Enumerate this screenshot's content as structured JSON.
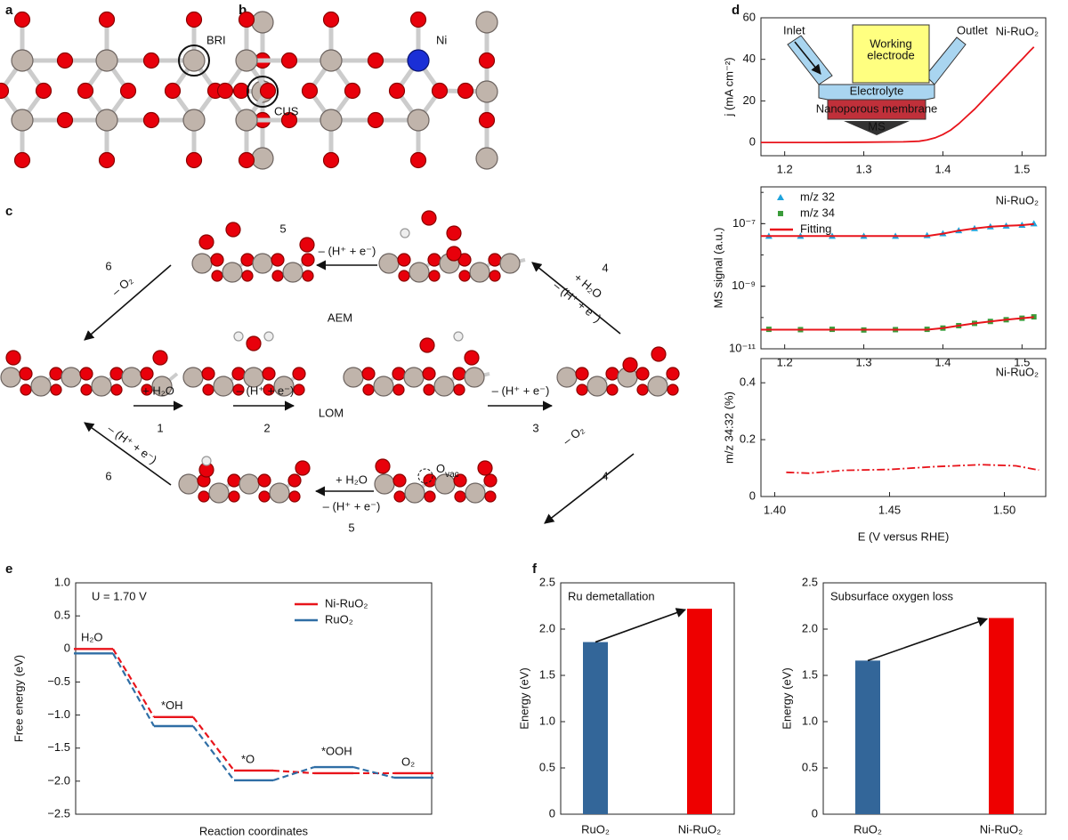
{
  "panels": {
    "a": {
      "label": "a",
      "bri": "BRI",
      "cus": "CUS"
    },
    "b": {
      "label": "b",
      "ni": "Ni"
    },
    "c": {
      "label": "c",
      "aem": "AEM",
      "lom": "LOM",
      "aem_steps": [
        {
          "number": "1",
          "text": [
            "+ H₂O"
          ]
        },
        {
          "number": "2",
          "text": [
            "– (H⁺ + e⁻)"
          ]
        },
        {
          "number": "3",
          "text": [
            "– (H⁺ + e⁻)"
          ]
        },
        {
          "number": "4",
          "text": [
            "+ H₂O",
            "– (H⁺ + e⁻)"
          ]
        },
        {
          "number": "5",
          "text": [
            "– (H⁺ + e⁻)"
          ]
        },
        {
          "number": "6",
          "text": [
            "– O₂"
          ]
        }
      ],
      "lom_steps": [
        {
          "number": "4",
          "text": [
            "– O₂"
          ]
        },
        {
          "number": "5",
          "text": [
            "+ H₂O",
            "– (H⁺ + e⁻)"
          ]
        },
        {
          "number": "6",
          "text": [
            "– (H⁺ + e⁻)"
          ]
        }
      ],
      "vacancy": {
        "main": "O",
        "sub": "vac"
      }
    },
    "d": {
      "label": "d"
    },
    "e": {
      "label": "e"
    },
    "f": {
      "label": "f"
    }
  },
  "chart_data": [
    {
      "type": "line",
      "annotation": "Ni-RuO₂",
      "ylabel": "j (mA cm⁻²)",
      "inset": {
        "inlet": "Inlet",
        "outlet": "Outlet",
        "working": [
          "Working",
          "electrode"
        ],
        "electrolyte": "Electrolyte",
        "membrane": "Nanoporous membrane",
        "ms": "MS"
      },
      "xlim": [
        1.17,
        1.53
      ],
      "xticks": [
        1.2,
        1.3,
        1.4,
        1.5
      ],
      "ylim": [
        -6.4,
        60
      ],
      "yticks": [
        0,
        20,
        40,
        60
      ],
      "series": [
        {
          "name": "Ni-RuO₂",
          "color": "#e8141b",
          "x": [
            1.17,
            1.2,
            1.25,
            1.3,
            1.35,
            1.37,
            1.38,
            1.39,
            1.4,
            1.41,
            1.42,
            1.43,
            1.44,
            1.45,
            1.46,
            1.47,
            1.48,
            1.49,
            1.5,
            1.51,
            1.515
          ],
          "values": [
            0,
            0,
            0,
            0.1,
            0.3,
            0.6,
            1.2,
            2.2,
            3.8,
            6,
            9,
            12.5,
            16,
            20,
            24,
            28,
            32,
            36,
            40,
            44,
            46
          ]
        }
      ]
    },
    {
      "type": "scatter",
      "annotation": "Ni-RuO₂",
      "ylabel": "MS signal (a.u.)",
      "log": true,
      "legend": "upper left",
      "xlim": [
        1.17,
        1.53
      ],
      "xticks": [
        1.2,
        1.3,
        1.4,
        1.5
      ],
      "ylim": [
        1e-11,
        1.5e-06
      ],
      "yticks": [
        {
          "value": 1e-07,
          "label": "10⁻⁷"
        },
        {
          "value": 1e-09,
          "label": "10⁻⁹"
        },
        {
          "value": 1e-11,
          "label": "10⁻¹¹"
        }
      ],
      "series": [
        {
          "name": "m/z 32",
          "color": "#1fa3dc",
          "marker": "triangle",
          "x": [
            1.18,
            1.22,
            1.26,
            1.3,
            1.34,
            1.38,
            1.4,
            1.42,
            1.44,
            1.46,
            1.48,
            1.5,
            1.515
          ],
          "values": [
            4e-08,
            4e-08,
            4e-08,
            4e-08,
            4e-08,
            4.2e-08,
            4.8e-08,
            6e-08,
            7e-08,
            8e-08,
            8.5e-08,
            9e-08,
            1e-07
          ]
        },
        {
          "name": "m/z 34",
          "color": "#3b9c3b",
          "marker": "square",
          "x": [
            1.18,
            1.22,
            1.26,
            1.3,
            1.34,
            1.38,
            1.4,
            1.42,
            1.44,
            1.46,
            1.48,
            1.5,
            1.515
          ],
          "values": [
            4.2e-11,
            4.1e-11,
            4.2e-11,
            4e-11,
            4.1e-11,
            4.2e-11,
            4.6e-11,
            5.5e-11,
            6.5e-11,
            7.5e-11,
            8.5e-11,
            9.5e-11,
            1.05e-10
          ]
        },
        {
          "name": "Fitting",
          "color": "#e8141b",
          "x": [
            1.17,
            1.38,
            1.4,
            1.42,
            1.44,
            1.46,
            1.48,
            1.5,
            1.515,
            null,
            1.17,
            1.38,
            1.4,
            1.42,
            1.44,
            1.46,
            1.48,
            1.5,
            1.515
          ],
          "values": [
            4e-08,
            4e-08,
            4.8e-08,
            6e-08,
            7e-08,
            8e-08,
            8.5e-08,
            9e-08,
            9.8e-08,
            null,
            4.1e-11,
            4.1e-11,
            4.6e-11,
            5.5e-11,
            6.5e-11,
            7.5e-11,
            8.5e-11,
            9.5e-11,
            1.03e-10
          ]
        }
      ]
    },
    {
      "type": "line",
      "annotation": "Ni-RuO₂",
      "ylabel": "m/z 34:32 (%)",
      "xlabel": "E (V versus RHE)",
      "xlim": [
        1.394,
        1.518
      ],
      "xticks": [
        {
          "value": 1.4,
          "label": "1.40"
        },
        1.45,
        {
          "value": 1.5,
          "label": "1.50"
        }
      ],
      "ylim": [
        0,
        0.485
      ],
      "yticks": [
        0,
        0.2,
        0.4
      ],
      "series": [
        {
          "name": "m/z 34:32",
          "color": "#e8141b",
          "linestyle": "dashdot",
          "x": [
            1.405,
            1.415,
            1.43,
            1.45,
            1.47,
            1.49,
            1.505,
            1.515
          ],
          "values": [
            0.085,
            0.082,
            0.092,
            0.095,
            0.105,
            0.112,
            0.108,
            0.093
          ]
        }
      ]
    },
    {
      "type": "step",
      "annotation": "U = 1.70 V",
      "ylabel": "Free energy (eV)",
      "xlabel": "Reaction coordinates",
      "legend": "upper right",
      "categories": [
        "H₂O",
        "*OH",
        "*O",
        "*OOH",
        "O₂"
      ],
      "ylim": [
        -2.5,
        1.0
      ],
      "yticks": [
        {
          "value": 1.0,
          "label": "1.0"
        },
        {
          "value": 0.5,
          "label": "0.5"
        },
        0,
        {
          "value": -0.5,
          "label": "−0.5"
        },
        {
          "value": -1.0,
          "label": "−1.0"
        },
        {
          "value": -1.5,
          "label": "−1.5"
        },
        {
          "value": -2.0,
          "label": "−2.0"
        },
        {
          "value": -2.5,
          "label": "−2.5"
        }
      ],
      "series": [
        {
          "name": "Ni-RuO₂",
          "color": "#e8141b",
          "values": [
            0,
            -1.03,
            -1.84,
            -1.88,
            -1.88
          ]
        },
        {
          "name": "RuO₂",
          "color": "#2f6ea5",
          "values": [
            0,
            -1.1,
            -1.92,
            -1.72,
            -1.88
          ]
        }
      ]
    },
    {
      "type": "bar",
      "title": "Ru demetallation",
      "ylabel": "Energy (eV)",
      "categories": [
        "RuO₂",
        "Ni-RuO₂"
      ],
      "values": [
        1.86,
        2.22
      ],
      "colors": [
        "#336699",
        "#ee0000"
      ],
      "ylim": [
        0,
        2.5
      ],
      "yticks": [
        0,
        0.5,
        {
          "value": 1.0,
          "label": "1.0"
        },
        1.5,
        {
          "value": 2.0,
          "label": "2.0"
        },
        2.5
      ]
    },
    {
      "type": "bar",
      "title": "Subsurface oxygen loss",
      "ylabel": "Energy (eV)",
      "categories": [
        "RuO₂",
        "Ni-RuO₂"
      ],
      "values": [
        1.66,
        2.12
      ],
      "colors": [
        "#336699",
        "#ee0000"
      ],
      "ylim": [
        0,
        2.5
      ],
      "yticks": [
        0,
        0.5,
        {
          "value": 1.0,
          "label": "1.0"
        },
        1.5,
        {
          "value": 2.0,
          "label": "2.0"
        },
        2.5
      ]
    }
  ]
}
